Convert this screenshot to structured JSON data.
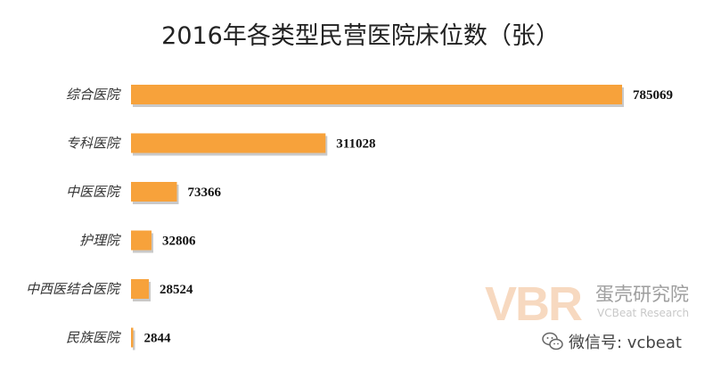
{
  "title": "2016年各类型民营医院床位数（张）",
  "chart_data": {
    "type": "bar",
    "orientation": "horizontal",
    "title": "2016年各类型民营医院床位数（张）",
    "categories": [
      "综合医院",
      "专科医院",
      "中医医院",
      "护理院",
      "中西医结合医院",
      "民族医院"
    ],
    "values": [
      785069,
      311028,
      73366,
      32806,
      28524,
      2844
    ],
    "xlim": [
      0,
      785069
    ],
    "grid": false,
    "legend": "none",
    "colors": {
      "bar": "#f7a23b",
      "shadow": "#c9c9c9"
    }
  },
  "watermark": {
    "logo_text": "VBR",
    "name_cn": "蛋壳研究院",
    "name_en": "VCBeat Research",
    "wechat_label": "微信号: vcbeat",
    "icon": "wechat-icon"
  }
}
